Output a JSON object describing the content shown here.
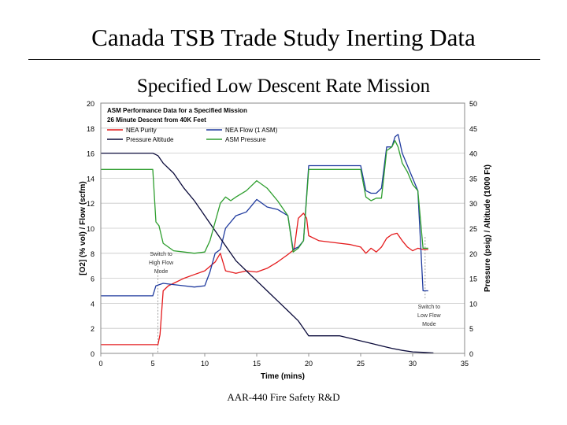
{
  "slide": {
    "title": "Canada TSB Trade Study Inerting Data",
    "footer": "AAR-440 Fire Safety R&D"
  },
  "chart_data": {
    "type": "line",
    "title": "Specified Low Descent Rate Mission",
    "inner_title": [
      "ASM Performance Data for a Specified Mission",
      "26 Minute Descent from 40K Feet"
    ],
    "xlabel": "Time (mins)",
    "ylabel_left": "[O2] (% vol) / Flow (scfm)",
    "ylabel_right": "Pressure (psig) / Altitude (1000 Ft)",
    "xlim": [
      0,
      35
    ],
    "ylim_left": [
      0,
      20
    ],
    "ylim_right": [
      0,
      50
    ],
    "xticks": [
      "0",
      "5",
      "10",
      "15",
      "20",
      "25",
      "30",
      "35"
    ],
    "yticks_left": [
      "0",
      "2",
      "4",
      "6",
      "8",
      "10",
      "12",
      "14",
      "16",
      "18",
      "20"
    ],
    "yticks_right": [
      "0",
      "5",
      "10",
      "15",
      "20",
      "25",
      "30",
      "35",
      "40",
      "45",
      "50"
    ],
    "grid": true,
    "legend_position": "top-left",
    "series": [
      {
        "name": "NEA Purity",
        "color": "#e41a1c",
        "axis": "left",
        "x": [
          0,
          5.5,
          5.7,
          6.0,
          6.5,
          7,
          8,
          9,
          10,
          11,
          11.5,
          12,
          13,
          14,
          15,
          16,
          17,
          18,
          18.6,
          19,
          19.5,
          19.8,
          20,
          21,
          22,
          23,
          24,
          25,
          25.5,
          26,
          26.5,
          27,
          27.5,
          28,
          28.5,
          29,
          29.5,
          30,
          30.5,
          31,
          31.5
        ],
        "y": [
          0.7,
          0.7,
          1.5,
          5.0,
          5.4,
          5.6,
          6.0,
          6.3,
          6.6,
          7.3,
          8.0,
          6.6,
          6.4,
          6.6,
          6.5,
          6.8,
          7.3,
          7.9,
          8.3,
          10.8,
          11.2,
          10.8,
          9.4,
          9.0,
          8.9,
          8.8,
          8.7,
          8.5,
          8.0,
          8.4,
          8.1,
          8.5,
          9.2,
          9.5,
          9.6,
          9.0,
          8.5,
          8.2,
          8.4,
          8.3,
          8.3
        ]
      },
      {
        "name": "NEA Flow (1 ASM)",
        "color": "#1f3a9e",
        "axis": "left",
        "x": [
          0,
          5.0,
          5.3,
          6,
          7,
          8,
          9,
          10,
          10.5,
          11,
          11.5,
          12,
          13,
          14,
          14.5,
          15,
          16,
          17,
          18,
          18.5,
          19,
          19.5,
          20,
          21,
          22,
          23,
          24,
          25,
          25.5,
          26,
          26.5,
          27,
          27.5,
          28,
          28.3,
          28.6,
          29,
          29.5,
          30,
          30.5,
          31,
          31.5
        ],
        "y": [
          4.6,
          4.6,
          5.4,
          5.6,
          5.5,
          5.4,
          5.3,
          5.4,
          6.5,
          8.0,
          8.3,
          10.0,
          11.0,
          11.3,
          11.8,
          12.3,
          11.7,
          11.5,
          11.0,
          8.3,
          8.5,
          9.0,
          15.0,
          15.0,
          15.0,
          15.0,
          15.0,
          15.0,
          13.0,
          12.8,
          12.8,
          13.2,
          16.5,
          16.5,
          17.3,
          17.5,
          16.0,
          15.0,
          14.0,
          13.0,
          5.0,
          5.0
        ]
      },
      {
        "name": "Pressure Altitude",
        "color": "#0a0a3a",
        "axis": "right",
        "x": [
          0,
          4,
          5,
          5.5,
          6,
          7,
          8,
          9,
          10,
          11,
          12,
          13,
          14,
          15,
          16,
          17,
          18,
          19,
          20,
          21,
          22,
          23,
          24,
          25,
          26,
          27,
          28,
          29,
          30,
          31,
          32
        ],
        "y": [
          40,
          40,
          40,
          39.5,
          38,
          36,
          33,
          30.5,
          27.5,
          24.5,
          21.5,
          18.5,
          16.5,
          14.5,
          12.5,
          10.5,
          8.5,
          6.5,
          3.5,
          3.5,
          3.5,
          3.5,
          3.0,
          2.5,
          2.0,
          1.5,
          1.0,
          0.6,
          0.3,
          0.2,
          0.1
        ]
      },
      {
        "name": "ASM Pressure",
        "color": "#2e9e2e",
        "axis": "left",
        "x": [
          0,
          5.0,
          5.3,
          5.6,
          6,
          7,
          8,
          9,
          10,
          10.5,
          11,
          11.5,
          12,
          12.5,
          13,
          14,
          15,
          16,
          17,
          18,
          18.5,
          19,
          19.5,
          20,
          21,
          22,
          23,
          24,
          25,
          25.5,
          26,
          26.5,
          27,
          27.5,
          28,
          28.3,
          28.6,
          29,
          29.5,
          30,
          30.5,
          31,
          31.5
        ],
        "y": [
          14.7,
          14.7,
          10.5,
          10.2,
          8.8,
          8.2,
          8.1,
          8.0,
          8.1,
          9.0,
          10.5,
          12.0,
          12.5,
          12.2,
          12.5,
          13.0,
          13.8,
          13.2,
          12.2,
          11.0,
          8.1,
          8.4,
          9.0,
          14.7,
          14.7,
          14.7,
          14.7,
          14.7,
          14.7,
          12.5,
          12.2,
          12.4,
          12.4,
          16.2,
          16.5,
          17.0,
          16.5,
          15.2,
          14.5,
          13.5,
          13.0,
          8.4,
          8.4
        ]
      }
    ],
    "annotations": [
      {
        "text": [
          "Switch to",
          "High Flow",
          "Mode"
        ],
        "x": 5.5
      },
      {
        "text": [
          "Switch to",
          "Low Flow",
          "Mode"
        ],
        "x": 31.2
      }
    ]
  }
}
